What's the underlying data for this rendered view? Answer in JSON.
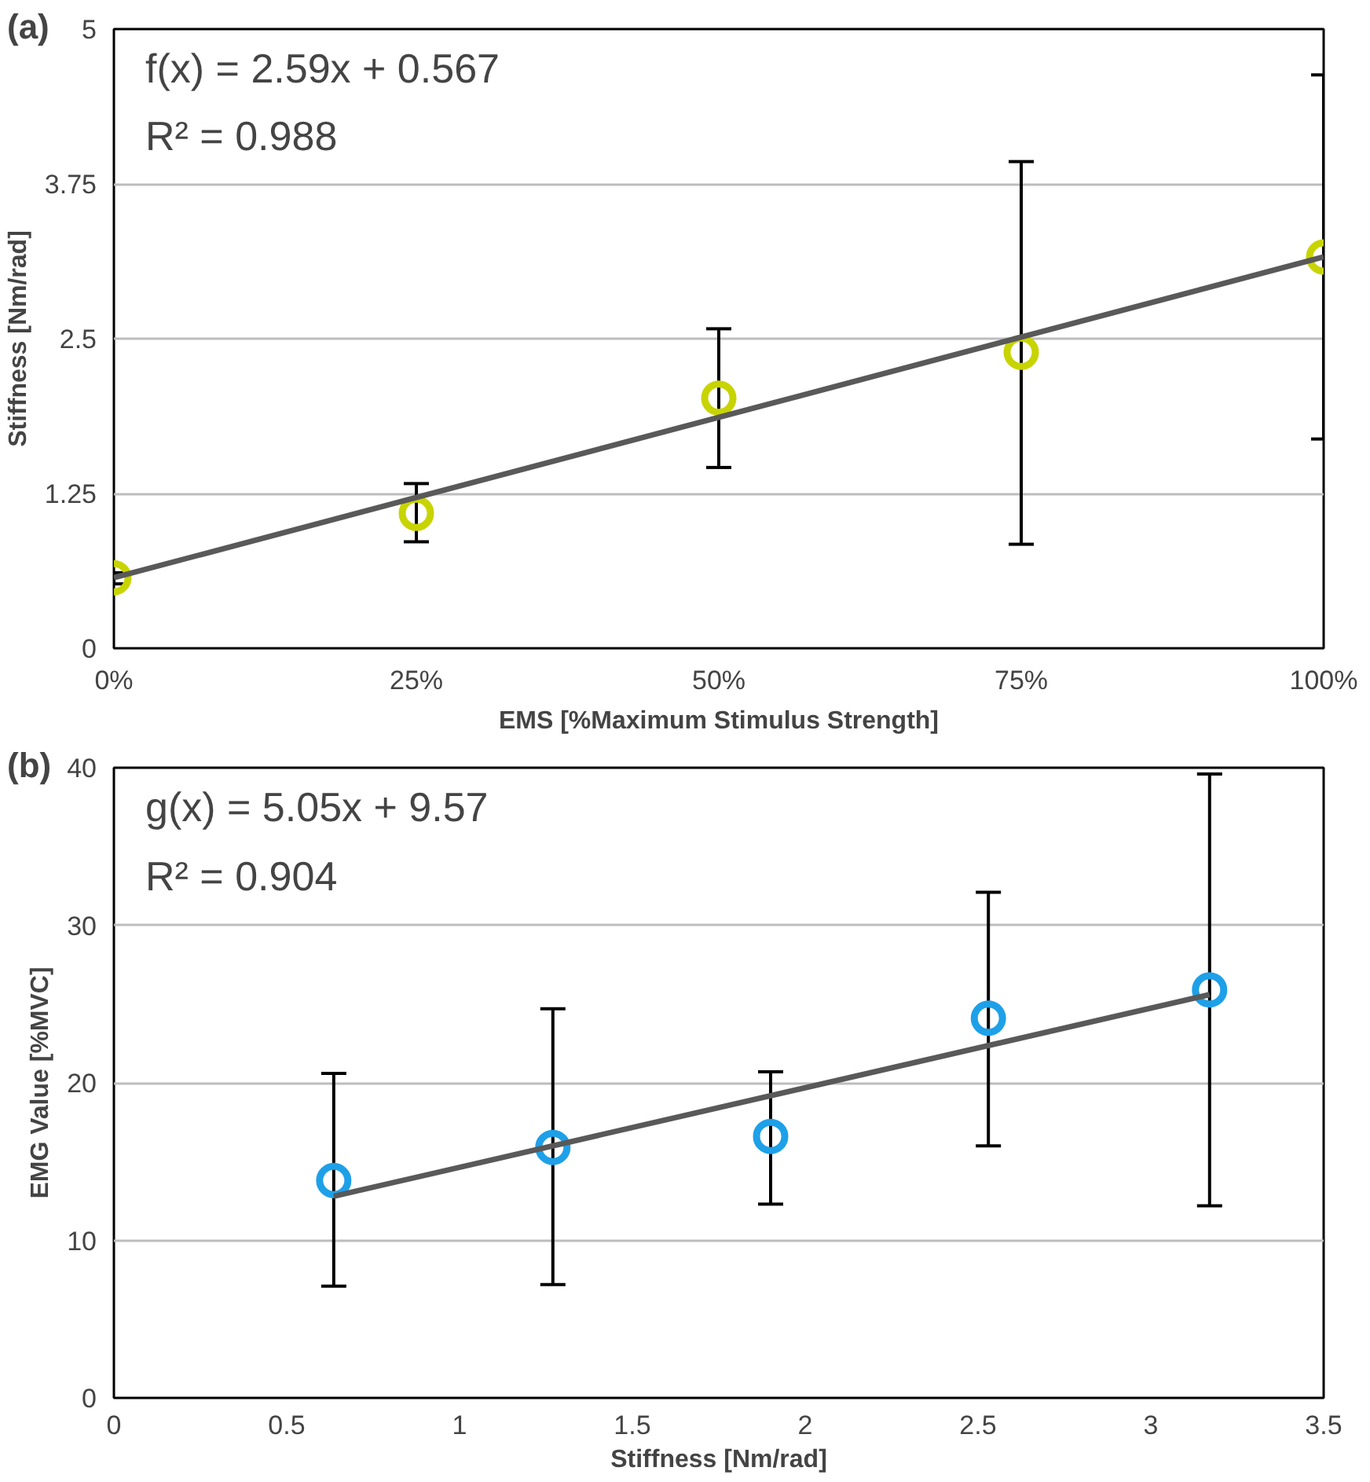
{
  "chart_data": [
    {
      "type": "scatter",
      "title": "(a)",
      "xlabel": "EMS [%Maximum Stimulus Strength]",
      "ylabel": "Stiffness [Nm/rad]",
      "annotations": [
        "f(x) = 2.59x + 0.567",
        "R² = 0.988"
      ],
      "x": [
        0,
        25,
        50,
        75,
        100
      ],
      "xlim": [
        0,
        100
      ],
      "xticks": [
        {
          "value": 0,
          "label": "0%"
        },
        {
          "value": 25,
          "label": "25%"
        },
        {
          "value": 50,
          "label": "50%"
        },
        {
          "value": 75,
          "label": "75%"
        },
        {
          "value": 100,
          "label": "100%"
        }
      ],
      "ylim": [
        0,
        5
      ],
      "yticks": [
        0,
        1.25,
        2.5,
        3.75,
        5
      ],
      "grid": "y",
      "series": [
        {
          "color": "#c8d400",
          "marker": "circle",
          "values": [
            0.57,
            1.09,
            2.02,
            2.39,
            3.16
          ],
          "errors": [
            [
              0.52,
              0.61
            ],
            [
              0.86,
              1.33
            ],
            [
              1.46,
              2.58
            ],
            [
              0.84,
              3.93
            ],
            [
              1.69,
              4.63
            ]
          ]
        },
        {
          "type": "line",
          "color": "#595959",
          "x": [
            0,
            100
          ],
          "values": [
            0.57,
            3.16
          ]
        }
      ]
    },
    {
      "type": "scatter",
      "title": "(b)",
      "xlabel": "Stiffness [Nm/rad]",
      "ylabel": "EMG Value [%MVC]",
      "annotations": [
        "g(x) = 5.05x + 9.57",
        "R² = 0.904"
      ],
      "x": [
        0.636,
        1.27,
        1.9,
        2.53,
        3.17
      ],
      "xlim": [
        0,
        3.5
      ],
      "xticks": [
        0,
        0.5,
        1,
        1.5,
        2,
        2.5,
        3,
        3.5
      ],
      "ylim": [
        0,
        40
      ],
      "yticks": [
        0,
        10,
        20,
        30,
        40
      ],
      "grid": "y",
      "series": [
        {
          "color": "#1ea0e8",
          "marker": "circle",
          "values": [
            13.8,
            15.9,
            16.6,
            24.1,
            25.9
          ],
          "errors": [
            [
              7.1,
              20.6
            ],
            [
              7.2,
              24.7
            ],
            [
              12.3,
              20.7
            ],
            [
              16.0,
              32.1
            ],
            [
              12.2,
              39.6
            ]
          ]
        },
        {
          "type": "line",
          "color": "#595959",
          "x": [
            0.636,
            3.17
          ],
          "values": [
            12.8,
            25.6
          ]
        }
      ]
    }
  ]
}
